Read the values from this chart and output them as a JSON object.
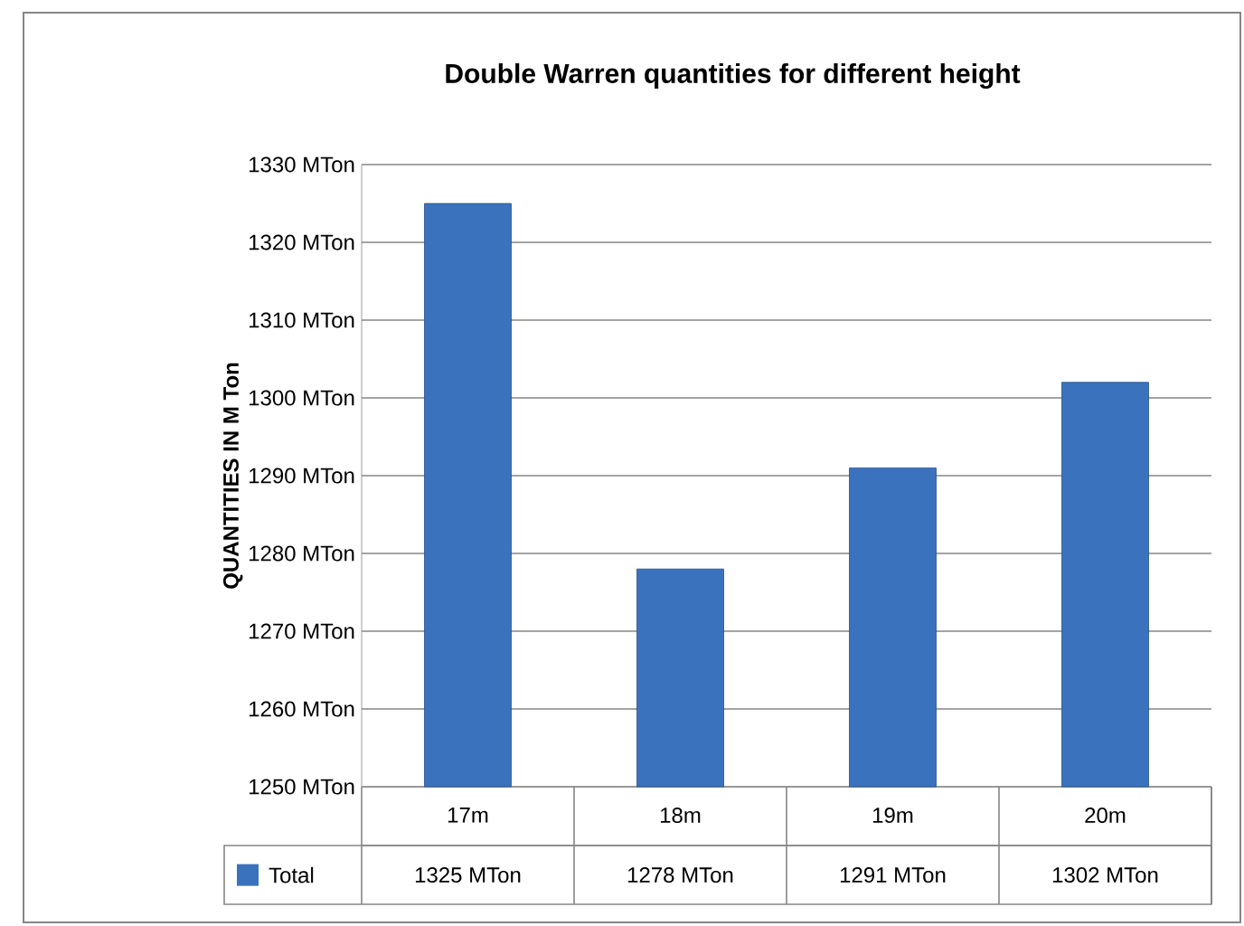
{
  "chart_data": {
    "type": "bar",
    "title": "Double Warren  quantities for different height",
    "ylabel": "QUANTITIES IN M Ton",
    "categories": [
      "17m",
      "18m",
      "19m",
      "20m"
    ],
    "series": [
      {
        "name": "Total",
        "color": "#3a72bd",
        "values": [
          1325,
          1278,
          1291,
          1302
        ],
        "value_labels": [
          "1325 MTon",
          "1278 MTon",
          "1291 MTon",
          "1302 MTon"
        ]
      }
    ],
    "ylim": [
      1250,
      1330
    ],
    "yticks": [
      {
        "value": 1250,
        "label": "1250 MTon"
      },
      {
        "value": 1260,
        "label": "1260 MTon"
      },
      {
        "value": 1270,
        "label": "1270 MTon"
      },
      {
        "value": 1280,
        "label": "1280 MTon"
      },
      {
        "value": 1290,
        "label": "1290 MTon"
      },
      {
        "value": 1300,
        "label": "1300 MTon"
      },
      {
        "value": 1310,
        "label": "1310 MTon"
      },
      {
        "value": 1320,
        "label": "1320 MTon"
      },
      {
        "value": 1330,
        "label": "1330 MTon"
      }
    ],
    "grid": "y",
    "legend": "bottom"
  }
}
